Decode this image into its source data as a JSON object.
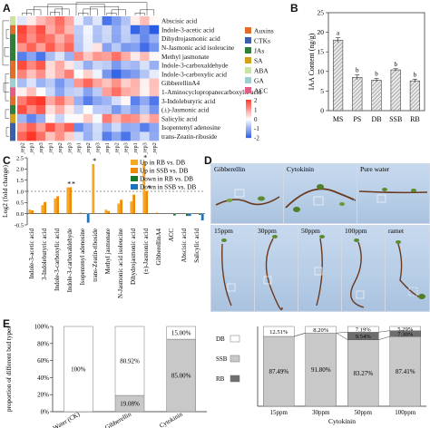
{
  "panels": {
    "A": "A",
    "B": "B",
    "C": "C",
    "D": "D",
    "E": "E"
  },
  "heatmap": {
    "rows": [
      "Abscisic acid",
      "Indole-3-acetic acid",
      "Dihydrojasmonic acid",
      "N-Jasmonic acid isoleucine",
      "Methyl jasmonate",
      "Indole-3-carboxaldehyde",
      "Indole-3-carboxylic acid",
      "GibberellinA4",
      "1-Aminocyclopropanecarboxylic acid",
      "3-Indolebutyric acid",
      "(±)-Jasmonic acid",
      "Salicylic acid",
      "Isopentenyl adenosine",
      "trans-Zeatin-riboside"
    ],
    "cols": [
      "RB_rep2",
      "RB_rep1",
      "RB_rep3",
      "SSB_rep1",
      "SSB_rep2",
      "SSB_rep3",
      "PS_rep1",
      "PS_rep2",
      "PS_rep3",
      "MS_rep1",
      "MS_rep2",
      "MS_rep3",
      "DB_rep1",
      "DB_rep3",
      "DB_rep2"
    ],
    "legend": [
      {
        "label": "Auxins",
        "color": "#e06d2b"
      },
      {
        "label": "CTKs",
        "color": "#3b5fa8"
      },
      {
        "label": "JAs",
        "color": "#2f7e3a"
      },
      {
        "label": "SA",
        "color": "#d4a017"
      },
      {
        "label": "ABA",
        "color": "#c9e3a3"
      },
      {
        "label": "GA",
        "color": "#9ccfd1"
      },
      {
        "label": "ACC",
        "color": "#e55d85"
      }
    ],
    "row_class_colors": [
      "#c9e3a3",
      "#e06d2b",
      "#2f7e3a",
      "#2f7e3a",
      "#2f7e3a",
      "#e06d2b",
      "#e06d2b",
      "#9ccfd1",
      "#e55d85",
      "#e06d2b",
      "#2f7e3a",
      "#d4a017",
      "#3b5fa8",
      "#3b5fa8"
    ],
    "scale": {
      "ticks": [
        "2",
        "1",
        "0",
        "-1",
        "-2"
      ]
    }
  },
  "chart_data": [
    {
      "type": "bar",
      "panel": "B",
      "categories": [
        "MS",
        "PS",
        "DB",
        "SSB",
        "RB"
      ],
      "values": [
        18.0,
        8.5,
        7.8,
        10.4,
        7.6
      ],
      "errors": [
        0.6,
        0.6,
        0.4,
        0.3,
        0.4
      ],
      "sig_letters": [
        "a",
        "b",
        "b",
        "b",
        "b"
      ],
      "ylabel": "IAA Content (ng/g)",
      "ylim": [
        0,
        25
      ],
      "yticks": [
        0,
        5,
        10,
        15,
        20,
        25
      ]
    },
    {
      "type": "bar",
      "panel": "C",
      "ylabel": "Log2 (fold change)",
      "ylim": [
        -0.5,
        2.5
      ],
      "yticks": [
        -0.5,
        0.0,
        0.5,
        1.0,
        1.5,
        2.0,
        2.5
      ],
      "categories": [
        "Indole-3-acetic acid",
        "3-Indolebutyric acid",
        "Indole-3-carboxylic acid",
        "Indole-3-carboxaldehyde",
        "Isopentenyl adenosine",
        "trans-Zeatin-riboside",
        "Methyl jasmonate",
        "N-Jasmonic acid isoleucine",
        "Dihydrojasmonic acid",
        "(±)-Jasmonic acid",
        "GibberellinA4",
        "ACC",
        "Abscisic acid",
        "Salicylic acid"
      ],
      "series": [
        {
          "name": "Up in RB vs. DB",
          "color": "#f5a623",
          "values": [
            0.18,
            0.38,
            0.68,
            1.18,
            0.05,
            2.22,
            0.18,
            0.45,
            0.55,
            2.35,
            0.05,
            0,
            0,
            0
          ]
        },
        {
          "name": "Up in SSB vs. DB",
          "color": "#f08a00",
          "values": [
            0.15,
            0.52,
            0.78,
            1.18,
            0,
            0,
            0.12,
            0.62,
            0.85,
            1.02,
            0,
            0,
            0,
            0
          ]
        },
        {
          "name": "Down in RB vs. DB",
          "color": "#1a7a2b",
          "values": [
            0,
            0,
            0,
            0,
            0,
            0,
            0,
            0,
            0,
            0,
            0,
            -0.08,
            -0.1,
            -0.05
          ]
        },
        {
          "name": "Down in SSB vs. DB",
          "color": "#1e73be",
          "values": [
            0,
            0,
            0,
            0,
            -0.4,
            0,
            0,
            0,
            0,
            0,
            0,
            0,
            -0.1,
            -0.3
          ]
        }
      ],
      "stars": [
        "",
        "",
        "",
        "*",
        "",
        "*",
        "",
        "",
        "",
        "*",
        "",
        "",
        "",
        ""
      ],
      "stars2": [
        "",
        "",
        "",
        "*",
        "",
        "",
        "",
        "",
        "",
        "*",
        "",
        "",
        "",
        ""
      ]
    },
    {
      "type": "bar",
      "panel": "E-left",
      "stacked": true,
      "ylabel": "proportion of different bud types",
      "yticks": [
        "0%",
        "20%",
        "40%",
        "60%",
        "80%",
        "100%"
      ],
      "categories": [
        "Water (CK)",
        "Gibberellin",
        "Cytokinin"
      ],
      "series": [
        {
          "name": "RB",
          "values": [
            0,
            0,
            0
          ]
        },
        {
          "name": "SSB",
          "values": [
            0,
            19.08,
            85.0
          ]
        },
        {
          "name": "DB",
          "values": [
            100,
            80.92,
            15.0
          ]
        }
      ],
      "labels": {
        "ck": "100%",
        "gib_top": "80.92%",
        "gib_bot": "19.08%",
        "cyt_top": "15.00%",
        "cyt_bot": "85.00%"
      }
    },
    {
      "type": "bar",
      "panel": "E-right",
      "stacked": true,
      "xlabel": "Cytokinin",
      "categories": [
        "15ppm",
        "30ppm",
        "50ppm",
        "100ppm"
      ],
      "series": [
        {
          "name": "SSB",
          "values": [
            87.49,
            91.8,
            83.27,
            87.41
          ]
        },
        {
          "name": "RB",
          "values": [
            0,
            0,
            9.54,
            7.3
          ]
        },
        {
          "name": "DB",
          "values": [
            12.51,
            8.2,
            7.19,
            5.29
          ]
        }
      ],
      "legend": [
        "DB",
        "SSB",
        "RB"
      ],
      "labels_ssb": [
        "87.49%",
        "91.80%",
        "83.27%",
        "87.41%"
      ],
      "labels_db": [
        "12.51%",
        "8.20%",
        "7.19%",
        "5.29%"
      ],
      "labels_rb": [
        "",
        "",
        "9.54%",
        "7.30%"
      ]
    }
  ],
  "photos": {
    "top": [
      "Gibberellin",
      "Cytokinin",
      "Pure water"
    ],
    "bottom": [
      "15ppm",
      "30ppm",
      "50ppm",
      "100ppm",
      "ramet"
    ]
  }
}
